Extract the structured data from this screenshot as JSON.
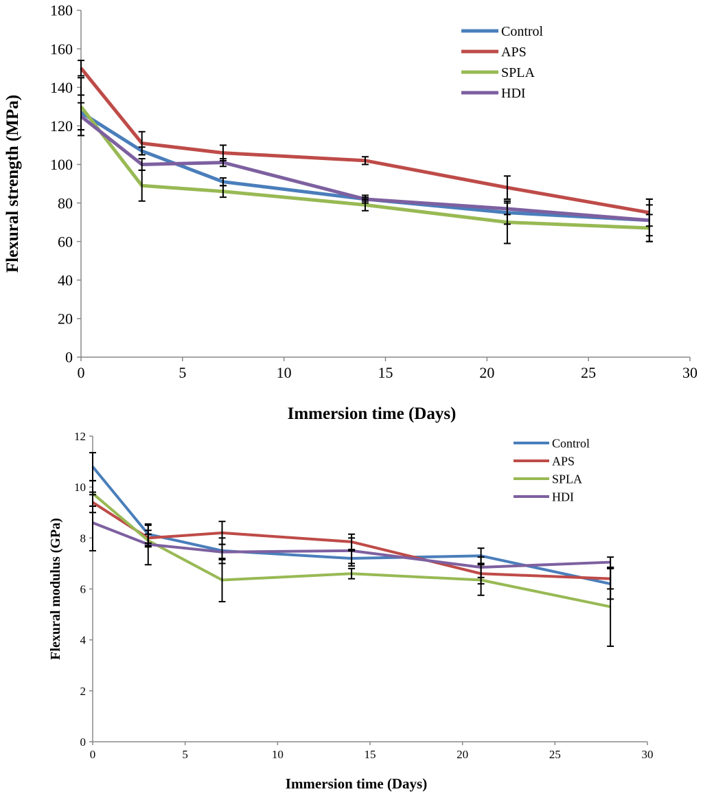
{
  "chart_data": [
    {
      "type": "line",
      "title": "",
      "xlabel": "Immersion time (Days)",
      "ylabel": "Flexural strength (MPa)",
      "xlim": [
        0,
        30
      ],
      "ylim": [
        0,
        180
      ],
      "xticks": [
        0,
        5,
        10,
        15,
        20,
        25,
        30
      ],
      "yticks": [
        0,
        20,
        40,
        60,
        80,
        100,
        120,
        140,
        160,
        180
      ],
      "grid": false,
      "legend_position": "top-right",
      "x": [
        0,
        3,
        7,
        14,
        21,
        28
      ],
      "series": [
        {
          "name": "Control",
          "color": "#4a7ebb",
          "values": [
            127,
            107,
            91,
            82,
            75,
            71
          ],
          "errors": [
            9,
            2,
            2,
            2,
            6,
            8
          ]
        },
        {
          "name": "APS",
          "color": "#be4b48",
          "values": [
            150,
            111,
            106,
            102,
            88,
            75
          ],
          "errors": [
            4,
            6,
            4,
            2,
            6,
            7
          ]
        },
        {
          "name": "SPLA",
          "color": "#98b954",
          "values": [
            130,
            89,
            86,
            79,
            70,
            67
          ],
          "errors": [
            15,
            8,
            3,
            3,
            11,
            7
          ]
        },
        {
          "name": "HDI",
          "color": "#7d60a0",
          "values": [
            125,
            100,
            101,
            82,
            77,
            71
          ],
          "errors": [
            7,
            3,
            2,
            1,
            3,
            11
          ]
        }
      ]
    },
    {
      "type": "line",
      "title": "",
      "xlabel": "Immersion time (Days)",
      "ylabel": "Flexural modulus (GPa)",
      "xlim": [
        0,
        30
      ],
      "ylim": [
        0,
        12
      ],
      "xticks": [
        0,
        5,
        10,
        15,
        20,
        25,
        30
      ],
      "yticks": [
        0,
        2,
        4,
        6,
        8,
        10,
        12
      ],
      "grid": false,
      "legend_position": "top-right",
      "x": [
        0,
        3,
        7,
        14,
        21,
        28
      ],
      "series": [
        {
          "name": "Control",
          "color": "#4a7ebb",
          "values": [
            10.8,
            8.15,
            7.5,
            7.2,
            7.3,
            6.2
          ],
          "errors": [
            0.55,
            0.35,
            0.5,
            0.3,
            0.3,
            0.6
          ]
        },
        {
          "name": "APS",
          "color": "#be4b48",
          "values": [
            9.4,
            8.0,
            8.2,
            7.85,
            6.6,
            6.4
          ],
          "errors": [
            0.4,
            0.3,
            0.45,
            0.3,
            0.4,
            0.4
          ]
        },
        {
          "name": "SPLA",
          "color": "#98b954",
          "values": [
            9.75,
            7.9,
            6.35,
            6.6,
            6.35,
            5.3
          ],
          "errors": [
            0.5,
            0.25,
            0.85,
            0.2,
            0.6,
            1.55
          ]
        },
        {
          "name": "HDI",
          "color": "#7d60a0",
          "values": [
            8.6,
            7.75,
            7.45,
            7.5,
            6.85,
            7.05
          ],
          "errors": [
            1.1,
            0.8,
            0.3,
            0.5,
            0.4,
            0.2
          ]
        }
      ]
    }
  ]
}
